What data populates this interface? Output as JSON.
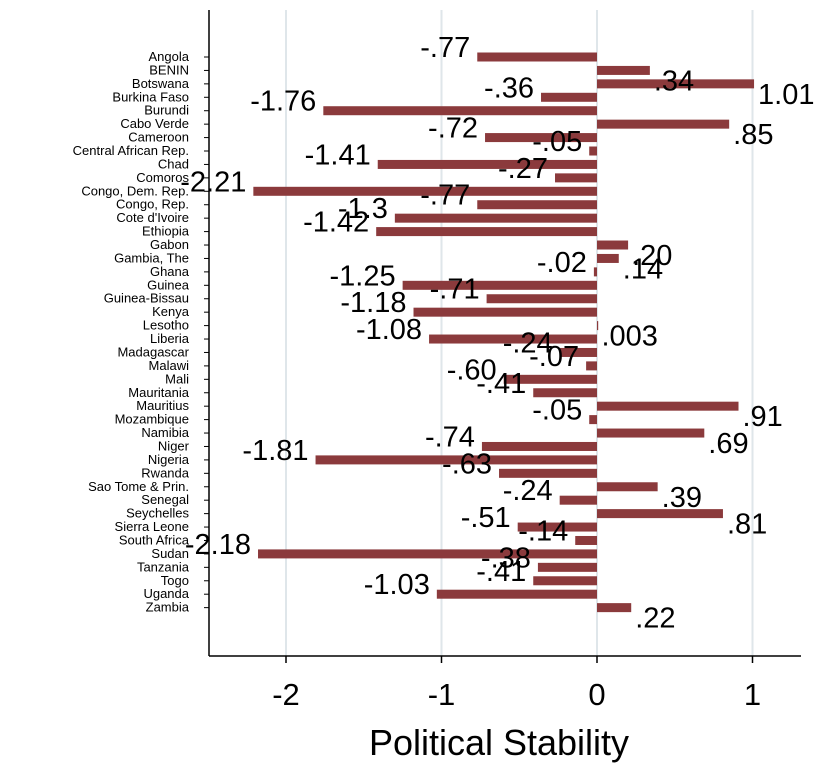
{
  "chart_data": {
    "type": "bar",
    "orientation": "horizontal",
    "xlabel": "Political Stability",
    "ylabel": "",
    "xlim": [
      -2.5,
      1.3
    ],
    "xticks": [
      -2,
      -1,
      0,
      1
    ],
    "xtick_labels": [
      "-2",
      "-1",
      "0",
      "1"
    ],
    "grid": true,
    "bar_color": "#8b3a3c",
    "categories": [
      "Angola",
      "BENIN",
      "Botswana",
      "Burkina Faso",
      "Burundi",
      "Cabo Verde",
      "Cameroon",
      "Central African Rep.",
      "Chad",
      "Comoros",
      "Congo, Dem. Rep.",
      "Congo, Rep.",
      "Cote d'Ivoire",
      "Ethiopia",
      "Gabon",
      "Gambia, The",
      "Ghana",
      "Guinea",
      "Guinea-Bissau",
      "Kenya",
      "Lesotho",
      "Liberia",
      "Madagascar",
      "Malawi",
      "Mali",
      "Mauritania",
      "Mauritius",
      "Mozambique",
      "Namibia",
      "Niger",
      "Nigeria",
      "Rwanda",
      "Sao Tome & Prin.",
      "Senegal",
      "Seychelles",
      "Sierra Leone",
      "South Africa",
      "Sudan",
      "Tanzania",
      "Togo",
      "Uganda",
      "Zambia"
    ],
    "values": [
      -0.77,
      0.34,
      1.01,
      -0.36,
      -1.76,
      0.85,
      -0.72,
      -0.05,
      -1.41,
      -0.27,
      -2.21,
      -0.77,
      -1.3,
      -1.42,
      0.2,
      0.14,
      -0.02,
      -1.25,
      -0.71,
      -1.18,
      0.003,
      -1.08,
      -0.24,
      -0.07,
      -0.6,
      -0.41,
      0.91,
      -0.05,
      0.69,
      -0.74,
      -1.81,
      -0.63,
      0.39,
      -0.24,
      0.81,
      -0.51,
      -0.14,
      -2.18,
      -0.38,
      -0.41,
      -1.03,
      0.22
    ],
    "data_labels": [
      "-.77",
      ".34",
      "1.01",
      "-.36",
      "-1.76",
      ".85",
      "-.72",
      "-.05",
      "-1.41",
      "-.27",
      "-2.21",
      "-.77",
      "-1.3",
      "-1.42",
      ".20",
      ".14",
      "-.02",
      "-1.25",
      "-.71",
      "-1.18",
      ".003",
      "-1.08",
      "-.24",
      "-.07",
      "-.60",
      "-.41",
      ".91",
      "-.05",
      ".69",
      "-.74",
      "-1.81",
      "-.63",
      ".39",
      "-.24",
      ".81",
      "-.51",
      "-.14",
      "-2.18",
      "-.38",
      "-.41",
      "-1.03",
      ".22"
    ]
  }
}
